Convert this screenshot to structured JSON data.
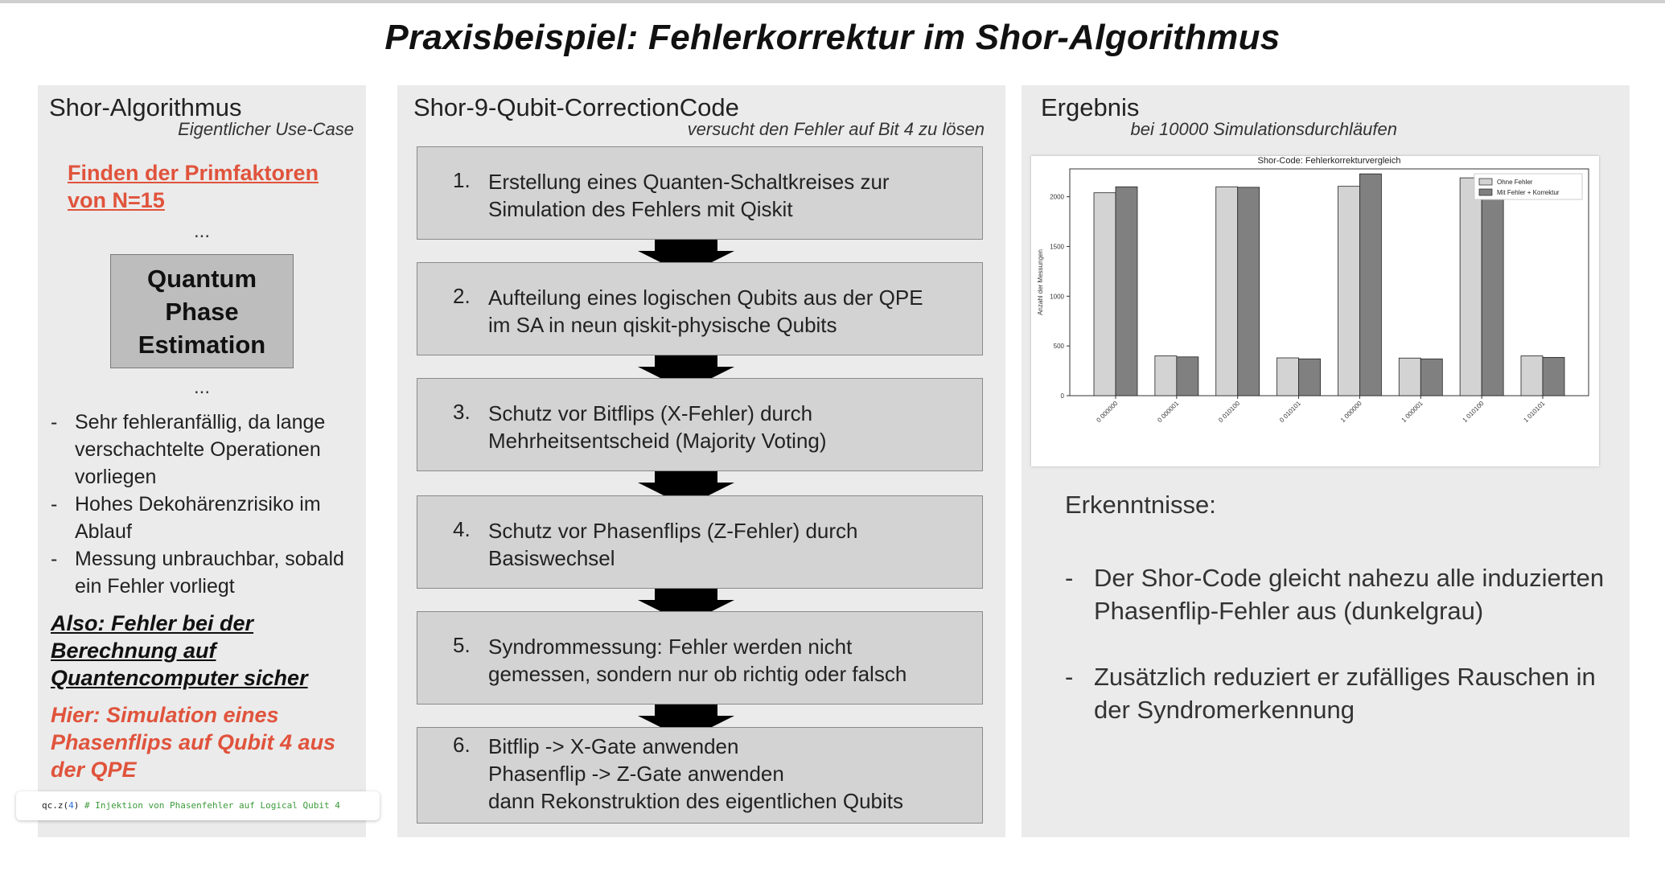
{
  "title": "Praxisbeispiel: Fehlerkorrektur im Shor-Algorithmus",
  "left": {
    "title": "Shor-Algorithmus",
    "subtitle": "Eigentlicher Use-Case",
    "highlight": "Finden der Primfaktoren von N=15",
    "dots": "...",
    "qpe_box": "Quantum Phase Estimation",
    "bullets": [
      "Sehr fehleranfällig, da lange verschachtelte Operationen vorliegen",
      "Hohes Dekohärenzrisiko im Ablauf",
      "Messung unbrauchbar, sobald ein Fehler vorliegt"
    ],
    "conclusion": "Also: Fehler bei der Berechnung auf Quantencomputer sicher",
    "note": "Hier: Simulation eines Phasenflips auf Qubit 4 aus der QPE",
    "code": {
      "prefix": "qc.z(",
      "arg": "4",
      "suffix": ") ",
      "comment": "# Injektion von Phasenfehler auf Logical Qubit 4"
    }
  },
  "middle": {
    "title": "Shor-9-Qubit-CorrectionCode",
    "subtitle": "versucht den Fehler auf Bit 4 zu lösen",
    "steps": [
      {
        "num": "1.",
        "text": "Erstellung eines Quanten-Schaltkreises zur\nSimulation des Fehlers mit Qiskit"
      },
      {
        "num": "2.",
        "text": "Aufteilung eines logischen Qubits aus der QPE\nim SA in neun qiskit-physische Qubits"
      },
      {
        "num": "3.",
        "text": "Schutz vor Bitflips (X-Fehler) durch\nMehrheitsentscheid (Majority Voting)"
      },
      {
        "num": "4.",
        "text": "Schutz vor Phasenflips (Z-Fehler) durch\nBasiswechsel"
      },
      {
        "num": "5.",
        "text": "Syndrommessung: Fehler werden nicht\ngemessen, sondern nur ob richtig oder falsch"
      },
      {
        "num": "6.",
        "text": "Bitflip -> X-Gate anwenden\nPhasenflip -> Z-Gate anwenden\ndann Rekonstruktion des eigentlichen Qubits"
      }
    ]
  },
  "right": {
    "title": "Ergebnis",
    "subtitle": "bei 10000 Simulationsdurchläufen",
    "insights_title": "Erkenntnisse:",
    "insights": [
      "Der Shor-Code gleicht nahezu alle induzierten Phasenflip-Fehler aus (dunkelgrau)",
      "Zusätzlich reduziert er zufälliges Rauschen in der Syndromerkennung"
    ]
  },
  "chart_data": {
    "type": "bar",
    "title": "Shor-Code: Fehlerkorrekturvergleich",
    "xlabel": "",
    "ylabel": "Anzahl der Messungen",
    "categories": [
      "0 000000",
      "0 000001",
      "0 010100",
      "0 010101",
      "1 000000",
      "1 000001",
      "1 010100",
      "1 010101"
    ],
    "series": [
      {
        "name": "Ohne Fehler",
        "color": "#d3d3d3",
        "values": [
          2040,
          400,
          2100,
          380,
          2105,
          378,
          2190,
          400
        ]
      },
      {
        "name": "Mit Fehler + Korrektur",
        "color": "#808080",
        "values": [
          2100,
          390,
          2095,
          370,
          2230,
          370,
          2065,
          385
        ]
      }
    ],
    "ylim": [
      0,
      2280
    ],
    "yticks": [
      0,
      500,
      1000,
      1500,
      2000
    ],
    "legend": "top-right",
    "grid": false
  }
}
